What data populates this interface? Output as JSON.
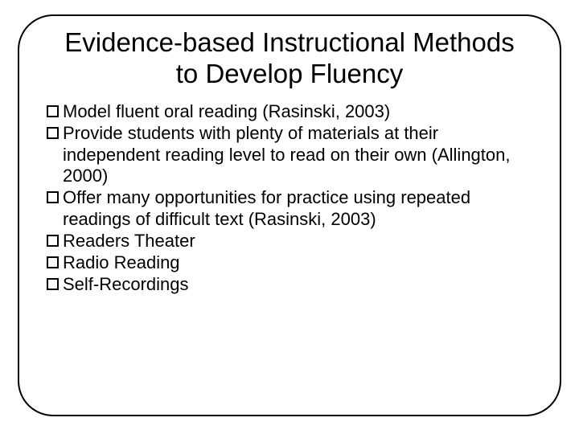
{
  "slide": {
    "title": "Evidence-based Instructional Methods to Develop Fluency",
    "title_fontsize": 33,
    "title_color": "#000000",
    "body_fontsize": 22,
    "body_color": "#000000",
    "background_color": "#ffffff",
    "frame_border_color": "#000000",
    "frame_border_width": 2,
    "frame_border_radius": 44,
    "bullet_marker": "hollow-square",
    "bullet_marker_size": 15,
    "bullet_marker_border": "#000000",
    "bullets": [
      "Model fluent oral reading (Rasinski, 2003)",
      "Provide students with plenty of materials at their independent reading level to read on their own (Allington, 2000)",
      "Offer many opportunities for practice using repeated readings of difficult text (Rasinski, 2003)",
      "Readers Theater",
      "Radio Reading",
      "Self-Recordings"
    ]
  }
}
